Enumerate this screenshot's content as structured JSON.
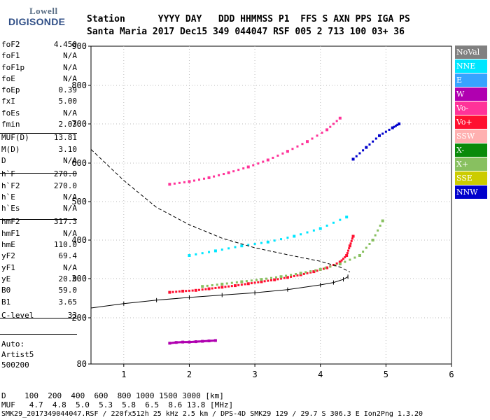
{
  "logo": {
    "line1": "Lowell",
    "line2": "DIGISONDE"
  },
  "header": {
    "row1": "Station      YYYY DAY   DDD HHMMSS P1  FFS S AXN PPS IGA PS",
    "row2": "Santa Maria 2017 Dec15 349 044047 RSF 005 2 713 100 03+ 36"
  },
  "params": [
    {
      "name": "foF2",
      "value": "4.450"
    },
    {
      "name": "foF1",
      "value": "N/A"
    },
    {
      "name": "foF1p",
      "value": "N/A"
    },
    {
      "name": "foE",
      "value": "N/A"
    },
    {
      "name": "foEp",
      "value": "0.39"
    },
    {
      "name": "fxI",
      "value": "5.00"
    },
    {
      "name": "foEs",
      "value": "N/A"
    },
    {
      "name": "fmin",
      "value": "2.03"
    },
    {
      "name": "MUF(D)",
      "value": "13.81"
    },
    {
      "name": "M(D)",
      "value": "3.10"
    },
    {
      "name": "D",
      "value": "N/A"
    },
    {
      "name": "h`F",
      "value": "270.0"
    },
    {
      "name": "h`F2",
      "value": "270.0"
    },
    {
      "name": "h`E",
      "value": "N/A"
    },
    {
      "name": "h`Es",
      "value": "N/A"
    },
    {
      "name": "hmF2",
      "value": "317.3"
    },
    {
      "name": "hmF1",
      "value": "N/A"
    },
    {
      "name": "hmE",
      "value": "110.0"
    },
    {
      "name": "yF2",
      "value": "69.4"
    },
    {
      "name": "yF1",
      "value": "N/A"
    },
    {
      "name": "yE",
      "value": "20.0"
    },
    {
      "name": "B0",
      "value": "59.0"
    },
    {
      "name": "B1",
      "value": "3.65"
    },
    {
      "name": "C-level",
      "value": "33"
    }
  ],
  "auto": {
    "l1": "Auto:",
    "l2": "Artist5",
    "l3": "500200"
  },
  "legend": [
    {
      "label": "NoVal",
      "color": "#808080"
    },
    {
      "label": "NNE",
      "color": "#00e6ff"
    },
    {
      "label": "E",
      "color": "#37a3ff"
    },
    {
      "label": "W",
      "color": "#b000b0"
    },
    {
      "label": "Vo-",
      "color": "#ff3399"
    },
    {
      "label": "Vo+",
      "color": "#ff1030"
    },
    {
      "label": "SSW",
      "color": "#ffb0b0"
    },
    {
      "label": "X-",
      "color": "#0a8a0a"
    },
    {
      "label": "X+",
      "color": "#88c060"
    },
    {
      "label": "SSE",
      "color": "#cccc00"
    },
    {
      "label": "NNW",
      "color": "#0000cc"
    }
  ],
  "bottom": {
    "d_line": "D    100  200  400  600  800 1000 1500 3000 [km]",
    "muf_line": "MUF   4.7  4.8  5.0  5.3  5.8  6.5  8.6 13.8 [MHz]",
    "footer": "SMK29_2017349044047.RSF / 220fx512h 25 kHz 2.5 km / DPS-4D SMK29 129 / 29.7 S 306.3 E Ion2Png 1.3.20"
  },
  "chart_data": {
    "type": "scatter",
    "xlim": [
      0.5,
      6
    ],
    "ylim": [
      80,
      900
    ],
    "x_ticks": [
      1,
      2,
      3,
      4,
      5,
      6
    ],
    "y_ticks": [
      80,
      200,
      300,
      400,
      500,
      600,
      700,
      800,
      900
    ],
    "grid": "dotted",
    "legend_placement": "right",
    "series": [
      {
        "name": "Vo+",
        "color": "#ff1030",
        "points": [
          [
            1.7,
            265
          ],
          [
            1.9,
            268
          ],
          [
            2.1,
            270
          ],
          [
            2.3,
            274
          ],
          [
            2.5,
            278
          ],
          [
            2.7,
            282
          ],
          [
            2.9,
            287
          ],
          [
            3.1,
            292
          ],
          [
            3.3,
            297
          ],
          [
            3.5,
            303
          ],
          [
            3.7,
            310
          ],
          [
            3.9,
            318
          ],
          [
            4.1,
            328
          ],
          [
            4.3,
            343
          ],
          [
            4.4,
            360
          ],
          [
            4.45,
            385
          ],
          [
            4.5,
            410
          ]
        ]
      },
      {
        "name": "X+",
        "color": "#88c060",
        "points": [
          [
            2.2,
            280
          ],
          [
            2.5,
            286
          ],
          [
            2.8,
            292
          ],
          [
            3.1,
            298
          ],
          [
            3.4,
            305
          ],
          [
            3.7,
            314
          ],
          [
            4.0,
            324
          ],
          [
            4.3,
            338
          ],
          [
            4.6,
            360
          ],
          [
            4.8,
            400
          ],
          [
            4.95,
            450
          ]
        ]
      },
      {
        "name": "NNE",
        "color": "#00e6ff",
        "points": [
          [
            2.0,
            360
          ],
          [
            2.4,
            372
          ],
          [
            2.8,
            385
          ],
          [
            3.2,
            395
          ],
          [
            3.6,
            410
          ],
          [
            4.0,
            430
          ],
          [
            4.4,
            460
          ]
        ]
      },
      {
        "name": "W",
        "color": "#b000b0",
        "points": [
          [
            1.7,
            134
          ],
          [
            1.8,
            136
          ],
          [
            1.9,
            137
          ],
          [
            2.0,
            137
          ],
          [
            2.1,
            138
          ],
          [
            2.2,
            139
          ],
          [
            2.3,
            140
          ],
          [
            2.4,
            141
          ]
        ]
      },
      {
        "name": "Vo-",
        "color": "#ff3399",
        "points": [
          [
            1.7,
            545
          ],
          [
            2.0,
            552
          ],
          [
            2.3,
            562
          ],
          [
            2.6,
            575
          ],
          [
            2.9,
            590
          ],
          [
            3.2,
            608
          ],
          [
            3.5,
            630
          ],
          [
            3.8,
            655
          ],
          [
            4.1,
            685
          ],
          [
            4.3,
            715
          ]
        ]
      },
      {
        "name": "NNW",
        "color": "#0000cc",
        "points": [
          [
            4.5,
            610
          ],
          [
            4.7,
            640
          ],
          [
            4.9,
            670
          ],
          [
            5.1,
            690
          ],
          [
            5.2,
            700
          ]
        ]
      }
    ],
    "trace": [
      [
        0.5,
        225
      ],
      [
        1.0,
        236
      ],
      [
        1.5,
        245
      ],
      [
        2.0,
        252
      ],
      [
        2.5,
        258
      ],
      [
        3.0,
        264
      ],
      [
        3.5,
        272
      ],
      [
        4.0,
        284
      ],
      [
        4.2,
        290
      ],
      [
        4.35,
        298
      ],
      [
        4.42,
        305
      ]
    ],
    "profile": [
      [
        0.5,
        635
      ],
      [
        1.0,
        555
      ],
      [
        1.5,
        485
      ],
      [
        2.0,
        440
      ],
      [
        2.5,
        405
      ],
      [
        3.0,
        380
      ],
      [
        3.5,
        362
      ],
      [
        4.0,
        345
      ],
      [
        4.3,
        330
      ],
      [
        4.45,
        317
      ]
    ]
  }
}
